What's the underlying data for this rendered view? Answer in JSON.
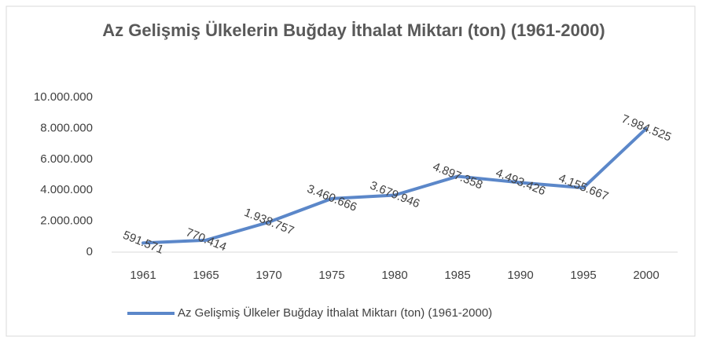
{
  "chart_data": {
    "type": "line",
    "title": "Az Gelişmiş Ülkelerin Buğday İthalat Miktarı (ton) (1961-2000)",
    "categories": [
      "1961",
      "1965",
      "1970",
      "1975",
      "1980",
      "1985",
      "1990",
      "1995",
      "2000"
    ],
    "series": [
      {
        "name": "Az Gelişmiş Ülkeler Buğday İthalat Miktarı (ton) (1961-2000)",
        "color": "#5b87c9",
        "values": [
          591571,
          770414,
          1938757,
          3460666,
          3679946,
          4897358,
          4493426,
          4155667,
          7984525
        ],
        "value_labels": [
          "591.571",
          "770.414",
          "1.938.757",
          "3.460.666",
          "3.679.946",
          "4.897.358",
          "4.493.426",
          "4.155.667",
          "7.984.525"
        ]
      }
    ],
    "ylim": [
      0,
      10000000
    ],
    "yticks": [
      0,
      {
        "value": 2000000,
        "label": "2.000.000"
      },
      {
        "value": 4000000,
        "label": "4.000.000"
      },
      {
        "value": 6000000,
        "label": "6.000.000"
      },
      {
        "value": 8000000,
        "label": "8.000.000"
      },
      {
        "value": 10000000,
        "label": "10.000.000"
      }
    ],
    "grid": false,
    "legend": "bottom"
  }
}
